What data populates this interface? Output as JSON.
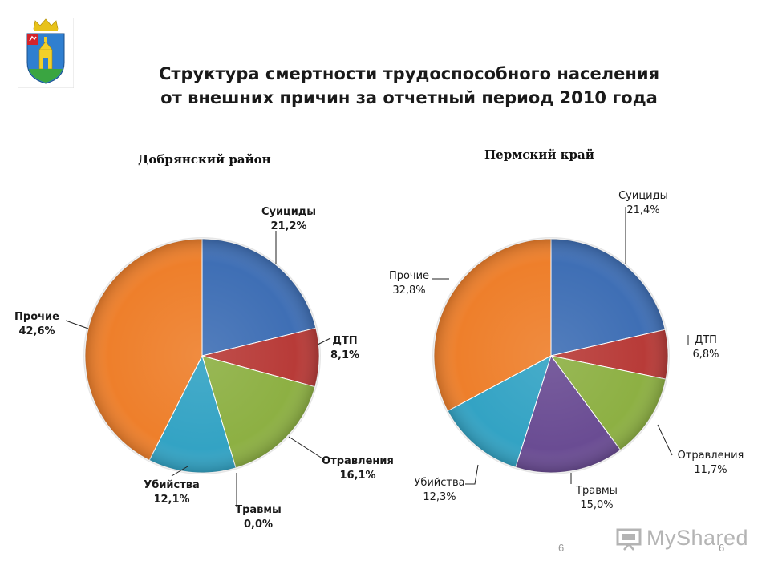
{
  "header": {
    "title_line1": "Структура смертности трудоспособного населения",
    "title_line2": "от внешних причин за отчетный период 2010 года"
  },
  "footer": {
    "page_number_center": "6",
    "page_number_right": "6",
    "watermark": "MyShared"
  },
  "chart_data": [
    {
      "type": "pie",
      "title": "Добрянский район",
      "slices": [
        {
          "label": "Суициды",
          "value": 21.2,
          "value_text": "21,2%",
          "color": "#3f6fb5"
        },
        {
          "label": "ДТП",
          "value": 8.1,
          "value_text": "8,1%",
          "color": "#b83b38"
        },
        {
          "label": "Отравления",
          "value": 16.1,
          "value_text": "16,1%",
          "color": "#8db043"
        },
        {
          "label": "Травмы",
          "value": 0.0,
          "value_text": "0,0%",
          "color": "#6a4c93"
        },
        {
          "label": "Убийства",
          "value": 12.1,
          "value_text": "12,1%",
          "color": "#33a3c4"
        },
        {
          "label": "Прочие",
          "value": 42.6,
          "value_text": "42,6%",
          "color": "#ee7f2b"
        }
      ]
    },
    {
      "type": "pie",
      "title": "Пермский край",
      "slices": [
        {
          "label": "Суициды",
          "value": 21.4,
          "value_text": "21,4%",
          "color": "#3f6fb5"
        },
        {
          "label": "ДТП",
          "value": 6.8,
          "value_text": "6,8%",
          "color": "#b83b38"
        },
        {
          "label": "Отравления",
          "value": 11.7,
          "value_text": "11,7%",
          "color": "#8db043"
        },
        {
          "label": "Травмы",
          "value": 15.0,
          "value_text": "15,0%",
          "color": "#6a4c93"
        },
        {
          "label": "Убийства",
          "value": 12.3,
          "value_text": "12,3%",
          "color": "#33a3c4"
        },
        {
          "label": "Прочие",
          "value": 32.8,
          "value_text": "32,8%",
          "color": "#ee7f2b"
        }
      ]
    }
  ]
}
